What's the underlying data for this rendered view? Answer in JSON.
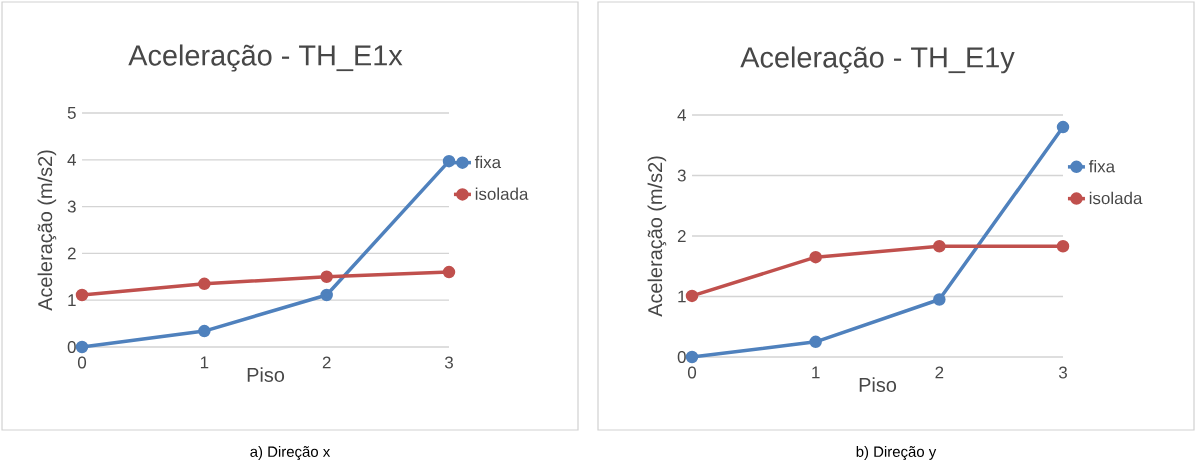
{
  "chart_data": [
    {
      "type": "line",
      "title": "Aceleração - TH_E1x",
      "xlabel": "Piso",
      "ylabel": "Aceleração (m/s2)",
      "x": [
        0,
        1,
        2,
        3
      ],
      "xlim": [
        0,
        3
      ],
      "xticks": [
        0,
        1,
        2,
        3
      ],
      "ylim": [
        0,
        5
      ],
      "yticks": [
        0,
        1,
        2,
        3,
        4,
        5
      ],
      "grid": "y",
      "legend": "right",
      "marker": "circle",
      "annotations": [
        "a) Direção x"
      ],
      "series": [
        {
          "name": "fixa",
          "color": "#4f81bd",
          "values": [
            0,
            0.34,
            1.11,
            3.97
          ]
        },
        {
          "name": "isolada",
          "color": "#c0504d",
          "values": [
            1.11,
            1.35,
            1.5,
            1.6
          ]
        }
      ]
    },
    {
      "type": "line",
      "title": "Aceleração - TH_E1y",
      "xlabel": "Piso",
      "ylabel": "Aceleração (m/s2)",
      "x": [
        0,
        1,
        2,
        3
      ],
      "xlim": [
        0,
        3
      ],
      "xticks": [
        0,
        1,
        2,
        3
      ],
      "ylim": [
        0,
        4
      ],
      "yticks": [
        0,
        1,
        2,
        3,
        4
      ],
      "grid": "y",
      "legend": "right",
      "marker": "circle",
      "annotations": [
        "b) Direção y"
      ],
      "series": [
        {
          "name": "fixa",
          "color": "#4f81bd",
          "values": [
            0,
            0.25,
            0.95,
            3.8
          ]
        },
        {
          "name": "isolada",
          "color": "#c0504d",
          "values": [
            1.01,
            1.65,
            1.83,
            1.83
          ]
        }
      ]
    }
  ]
}
